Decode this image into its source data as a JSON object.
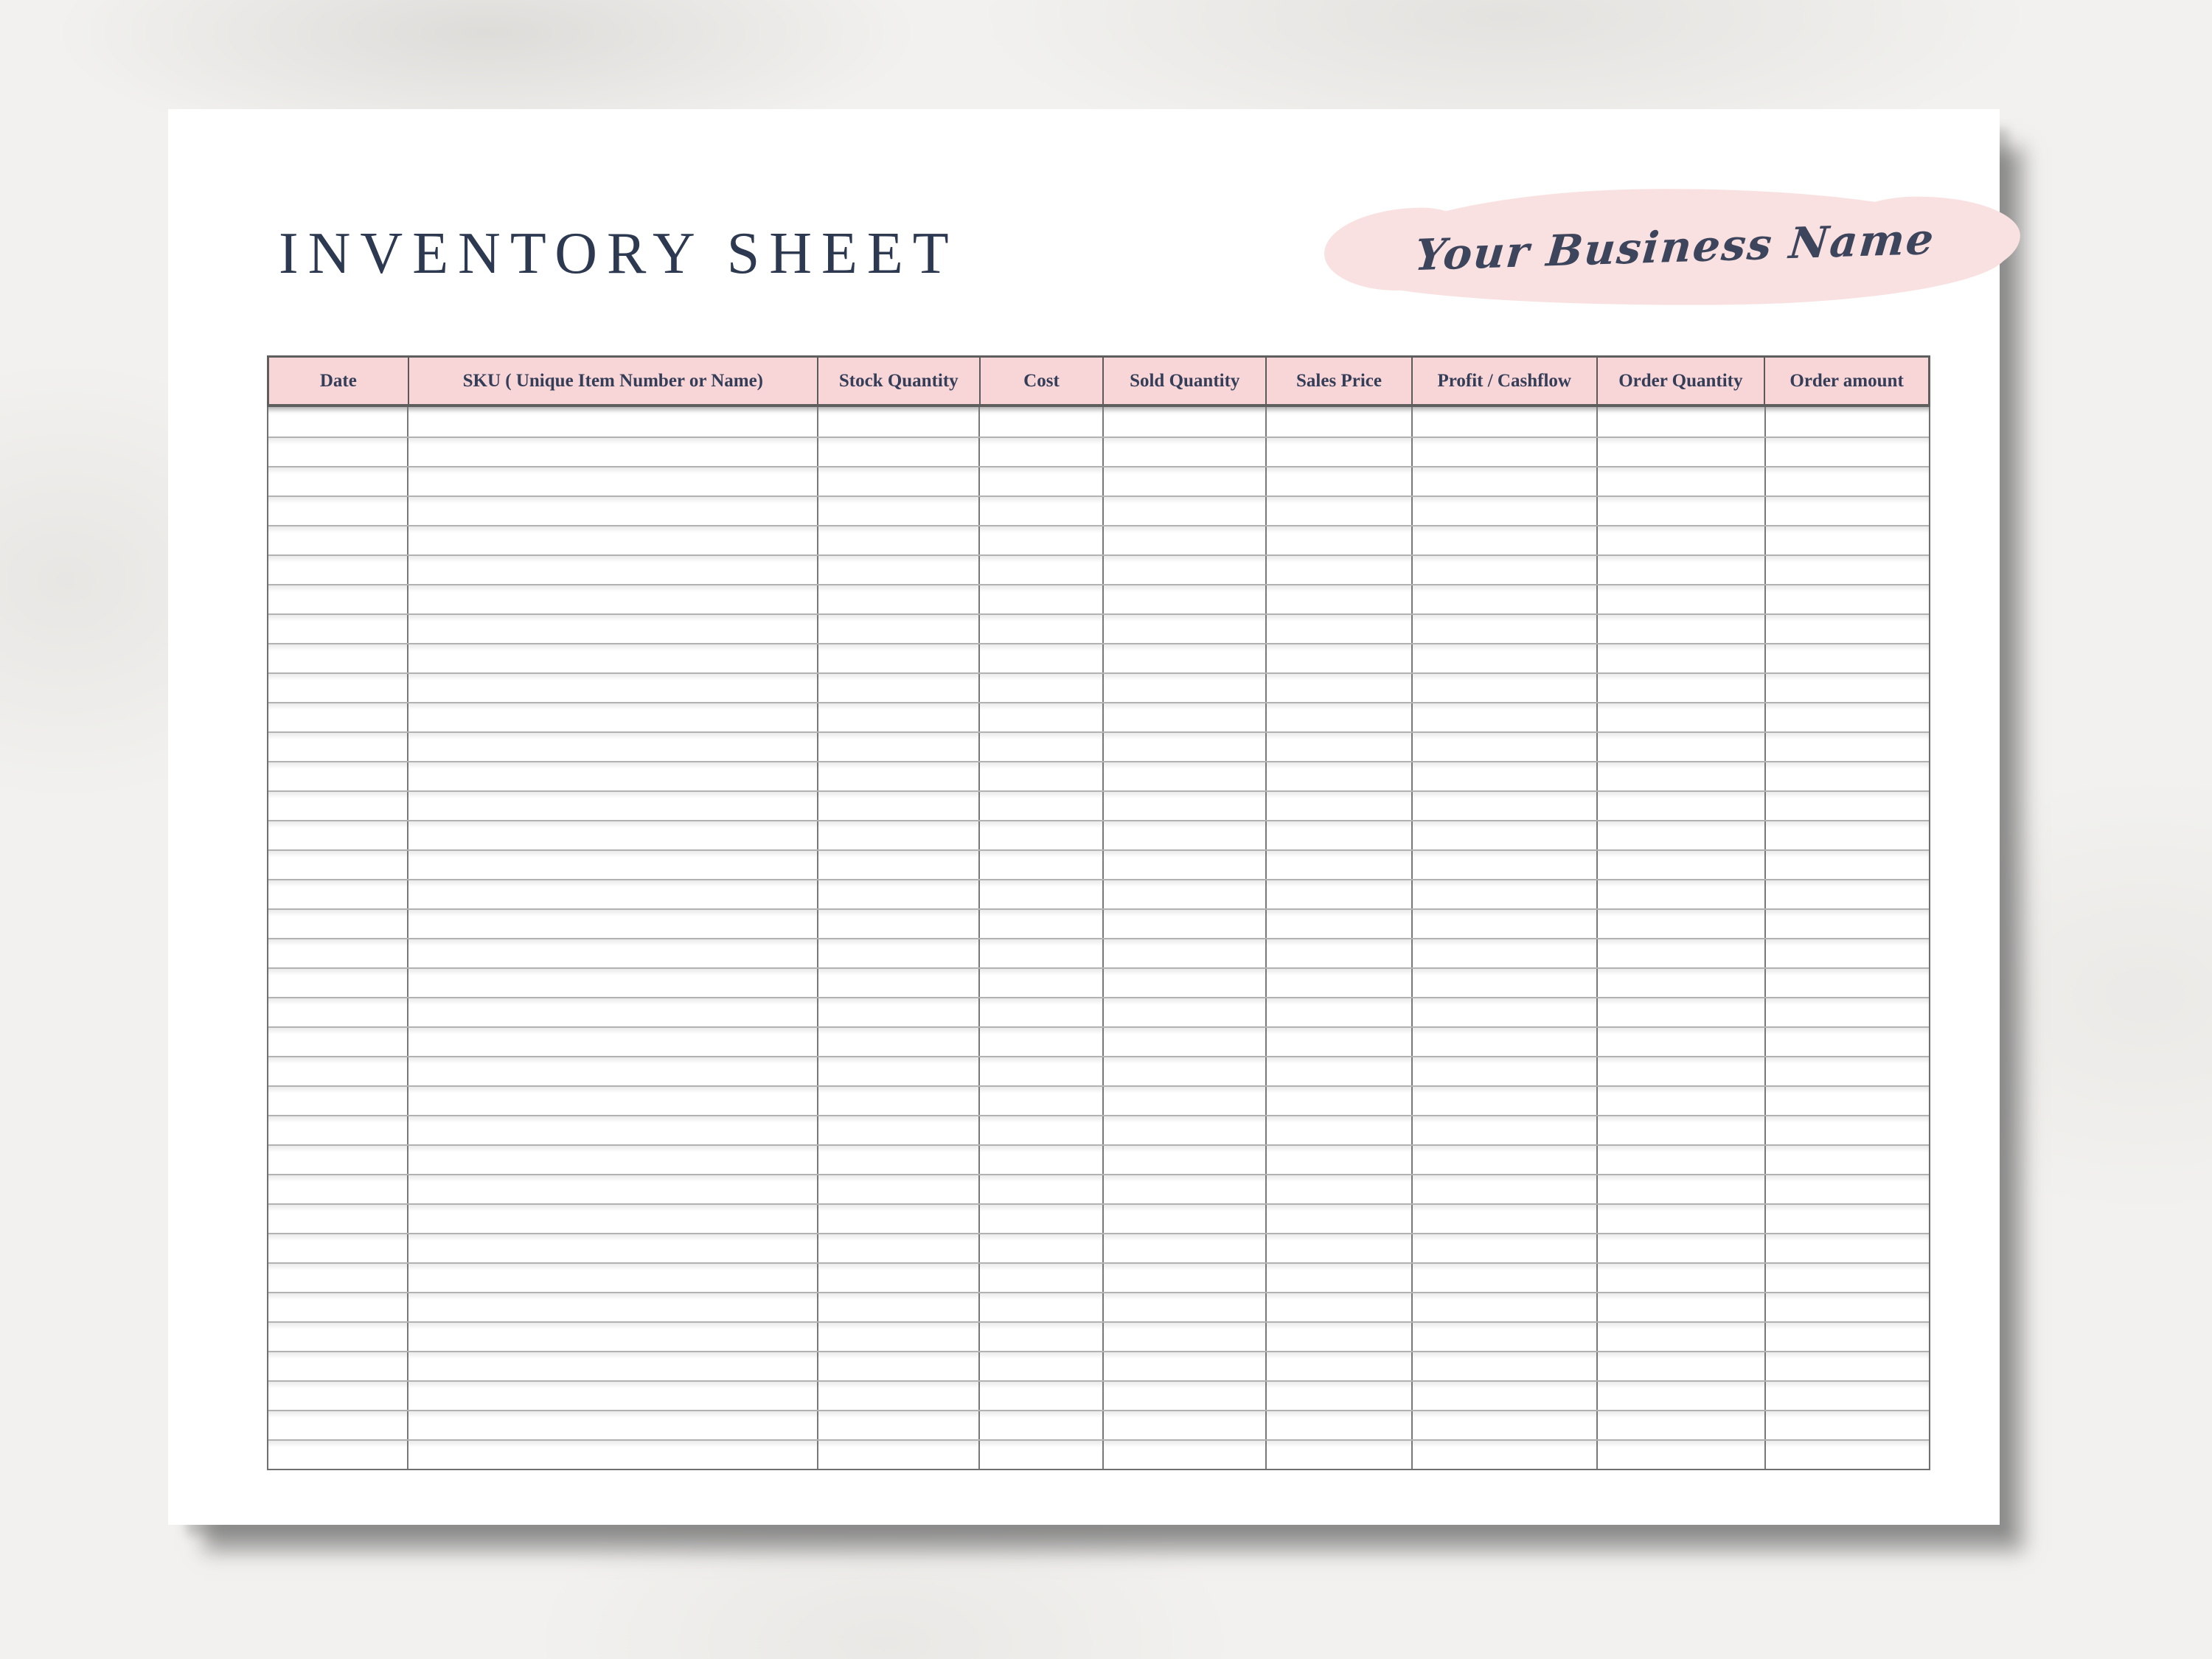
{
  "document": {
    "title": "INVENTORY SHEET",
    "business_name": "Your Business Name"
  },
  "table": {
    "columns": [
      {
        "label": "Date",
        "width_pct": 8.43
      },
      {
        "label": "SKU ( Unique Item Number or Name)",
        "width_pct": 24.68
      },
      {
        "label": "Stock Quantity",
        "width_pct": 9.76
      },
      {
        "label": "Cost",
        "width_pct": 7.46
      },
      {
        "label": "Sold Quantity",
        "width_pct": 9.81
      },
      {
        "label": "Sales Price",
        "width_pct": 8.79
      },
      {
        "label": "Profit / Cashflow",
        "width_pct": 11.14
      },
      {
        "label": "Order Quantity",
        "width_pct": 10.12
      },
      {
        "label": "Order amount",
        "width_pct": 9.81
      }
    ],
    "empty_rows": 36
  },
  "colors": {
    "header_bg": "#f8d5d6",
    "brush_pink": "#fae1e1",
    "ink_navy": "#2d3950",
    "script_ink": "#3d455c",
    "grid_horizontal": "#b2b2b2",
    "grid_vertical": "#787878"
  }
}
